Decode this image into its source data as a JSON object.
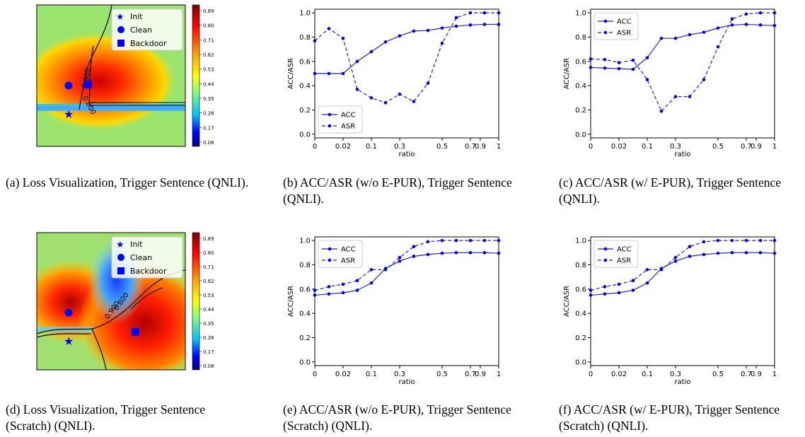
{
  "panels": [
    {
      "id": "a",
      "kind": "loss",
      "caption": "(a) Loss Visualization, Trigger Sentence (QNLI).",
      "legend": [
        "Init",
        "Clean",
        "Backdoor"
      ],
      "colorbar_ticks": [
        "0.89",
        "0.80",
        "0.71",
        "0.62",
        "0.53",
        "0.44",
        "0.35",
        "0.26",
        "0.17",
        "0.08"
      ],
      "contour_labels": [
        "0.800",
        "0.900"
      ]
    },
    {
      "id": "b",
      "kind": "chart",
      "caption": "(b) ACC/ASR (w/o E-PUR), Trigger Sentence (QNLI).",
      "chart_data": {
        "type": "line",
        "xlabel": "ratio",
        "ylabel": "ACC/ASR",
        "ylim": [
          -0.03,
          1.03
        ],
        "x_tick_labels": [
          "0",
          "0.02",
          "0.1",
          "0.3",
          "0.5",
          "0.7",
          "0.9",
          "1"
        ],
        "y_tick_labels": [
          "0.0",
          "0.2",
          "0.4",
          "0.6",
          "0.8",
          "1.0"
        ],
        "legend_position": "lower-left",
        "series": [
          {
            "name": "ACC",
            "values": [
              0.5,
              0.5,
              0.5,
              0.6,
              0.68,
              0.76,
              0.81,
              0.85,
              0.855,
              0.875,
              0.89,
              0.9,
              0.905,
              0.905
            ]
          },
          {
            "name": "ASR",
            "values": [
              0.77,
              0.87,
              0.79,
              0.37,
              0.3,
              0.26,
              0.33,
              0.27,
              0.42,
              0.75,
              0.96,
              1.0,
              1.0,
              1.0
            ]
          }
        ]
      }
    },
    {
      "id": "c",
      "kind": "chart",
      "caption": "(c) ACC/ASR (w/ E-PUR), Trigger Sentence (QNLI).",
      "chart_data": {
        "type": "line",
        "xlabel": "ratio",
        "ylabel": "ACC/ASR",
        "ylim": [
          -0.03,
          1.03
        ],
        "x_tick_labels": [
          "0",
          "0.02",
          "0.1",
          "0.3",
          "0.5",
          "0.7",
          "0.9",
          "1"
        ],
        "y_tick_labels": [
          "0.0",
          "0.2",
          "0.4",
          "0.6",
          "0.8",
          "1.0"
        ],
        "legend_position": "upper-left",
        "series": [
          {
            "name": "ACC",
            "values": [
              0.55,
              0.545,
              0.54,
              0.535,
              0.63,
              0.79,
              0.79,
              0.82,
              0.84,
              0.875,
              0.9,
              0.905,
              0.9,
              0.895
            ]
          },
          {
            "name": "ASR",
            "values": [
              0.62,
              0.615,
              0.59,
              0.61,
              0.45,
              0.19,
              0.31,
              0.31,
              0.45,
              0.72,
              0.95,
              0.99,
              1.0,
              1.0
            ]
          }
        ]
      }
    },
    {
      "id": "d",
      "kind": "loss",
      "caption": "(d) Loss Visualization, Trigger Sentence (Scratch) (QNLI).",
      "legend": [
        "Init",
        "Clean",
        "Backdoor"
      ],
      "colorbar_ticks": [
        "0.89",
        "0.80",
        "0.71",
        "0.62",
        "0.53",
        "0.44",
        "0.35",
        "0.26",
        "0.17",
        "0.08"
      ],
      "contour_labels": [
        "0.900",
        "0.800"
      ]
    },
    {
      "id": "e",
      "kind": "chart",
      "caption": "(e) ACC/ASR (w/o E-PUR), Trigger Sentence (Scratch) (QNLI).",
      "chart_data": {
        "type": "line",
        "xlabel": "ratio",
        "ylabel": "ACC/ASR",
        "ylim": [
          -0.03,
          1.03
        ],
        "x_tick_labels": [
          "0",
          "0.02",
          "0.1",
          "0.3",
          "0.5",
          "0.7",
          "0.9",
          "1"
        ],
        "y_tick_labels": [
          "0.0",
          "0.2",
          "0.4",
          "0.6",
          "0.8",
          "1.0"
        ],
        "legend_position": "upper-left",
        "series": [
          {
            "name": "ACC",
            "values": [
              0.55,
              0.56,
              0.57,
              0.59,
              0.65,
              0.77,
              0.83,
              0.87,
              0.885,
              0.895,
              0.9,
              0.9,
              0.9,
              0.895
            ]
          },
          {
            "name": "ASR",
            "values": [
              0.59,
              0.62,
              0.64,
              0.67,
              0.76,
              0.76,
              0.86,
              0.95,
              0.99,
              1.0,
              1.0,
              1.0,
              1.0,
              1.0
            ]
          }
        ]
      }
    },
    {
      "id": "f",
      "kind": "chart",
      "caption": "(f) ACC/ASR (w/ E-PUR), Trigger Sentence (Scratch) (QNLI).",
      "chart_data": {
        "type": "line",
        "xlabel": "ratio",
        "ylabel": "ACC/ASR",
        "ylim": [
          -0.03,
          1.03
        ],
        "x_tick_labels": [
          "0",
          "0.02",
          "0.1",
          "0.3",
          "0.5",
          "0.7",
          "0.9",
          "1"
        ],
        "y_tick_labels": [
          "0.0",
          "0.2",
          "0.4",
          "0.6",
          "0.8",
          "1.0"
        ],
        "legend_position": "upper-left",
        "series": [
          {
            "name": "ACC",
            "values": [
              0.55,
              0.56,
              0.57,
              0.59,
              0.65,
              0.77,
              0.83,
              0.87,
              0.885,
              0.895,
              0.9,
              0.9,
              0.9,
              0.895
            ]
          },
          {
            "name": "ASR",
            "values": [
              0.59,
              0.62,
              0.64,
              0.67,
              0.76,
              0.76,
              0.86,
              0.95,
              0.99,
              1.0,
              1.0,
              1.0,
              1.0,
              1.0
            ]
          }
        ]
      }
    }
  ],
  "colors": {
    "line": "#1f1fe0",
    "marker": "#0000ff",
    "axis": "#000000"
  }
}
